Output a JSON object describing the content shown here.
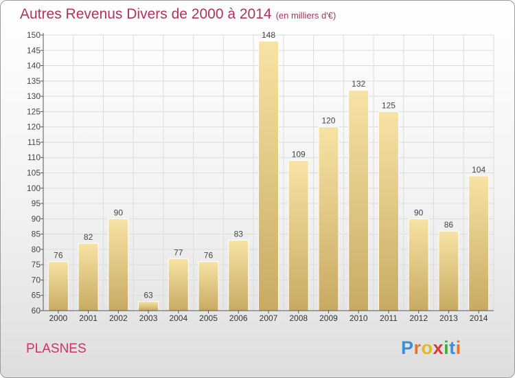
{
  "header": {
    "title": "Autres Revenus Divers de 2000 à 2014",
    "unit": "(en milliers d'€)"
  },
  "footer": {
    "place": "PLASNES",
    "logo": {
      "letters": [
        "P",
        "r",
        "o",
        "x",
        "i",
        "t",
        "i"
      ],
      "colors": [
        "#3a8fd8",
        "#e8742a",
        "#e6b81f",
        "#d63a3a",
        "#4aa83a",
        "#3a8fd8",
        "#e8742a"
      ]
    }
  },
  "colors": {
    "bar_light": "#f7e3a5",
    "bar_dark": "#c8aa62",
    "title": "#b0335a",
    "place": "#cc3366"
  },
  "chart_data": {
    "type": "bar",
    "categories": [
      "2000",
      "2001",
      "2002",
      "2003",
      "2004",
      "2005",
      "2006",
      "2007",
      "2008",
      "2009",
      "2010",
      "2011",
      "2012",
      "2013",
      "2014"
    ],
    "values": [
      76,
      82,
      90,
      63,
      77,
      76,
      83,
      148,
      109,
      120,
      132,
      125,
      90,
      86,
      104
    ],
    "data_labels": [
      "76",
      "82",
      "90",
      "63",
      "77",
      "76",
      "83",
      "148",
      "109",
      "120",
      "132",
      "125",
      "90",
      "86",
      "104"
    ],
    "ylim": [
      60,
      150
    ],
    "yticks": [
      60,
      65,
      70,
      75,
      80,
      85,
      90,
      95,
      100,
      105,
      110,
      115,
      120,
      125,
      130,
      135,
      140,
      145,
      150
    ],
    "grid": true,
    "legend": "none"
  }
}
